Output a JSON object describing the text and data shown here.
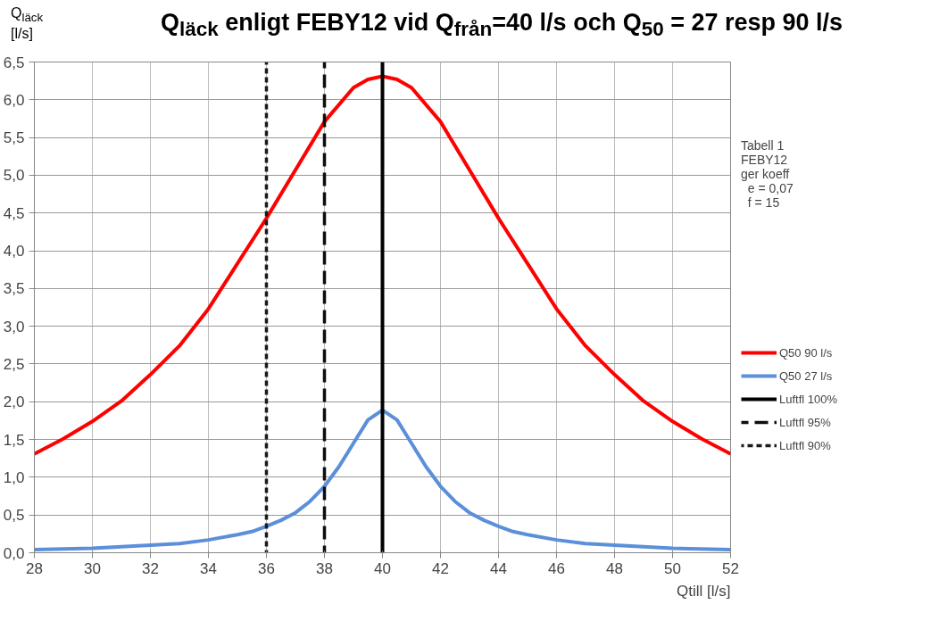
{
  "chart_data": {
    "type": "line",
    "title": "Q$_{läck}$ enligt FEBY12 vid Q$_{från}$=40 l/s och Q$_{50}$ = 27 resp 90 l/s",
    "ylabel": "Q$_{läck}$ [l/s]",
    "xlabel": "Qtill [l/s]",
    "x": [
      28,
      29,
      30,
      31,
      32,
      33,
      34,
      35,
      36,
      37,
      38,
      39,
      39.5,
      40,
      40.5,
      41,
      42,
      43,
      44,
      45,
      46,
      47,
      48,
      49,
      50,
      51,
      52
    ],
    "series": [
      {
        "name": "Q50 90 l/s",
        "color": "#ff0000",
        "values": [
          1.31,
          1.51,
          1.74,
          2.01,
          2.36,
          2.74,
          3.23,
          3.83,
          4.43,
          5.07,
          5.71,
          6.16,
          6.27,
          6.31,
          6.27,
          6.16,
          5.71,
          5.07,
          4.43,
          3.83,
          3.23,
          2.74,
          2.36,
          2.01,
          1.74,
          1.51,
          1.31
        ]
      },
      {
        "name": "Q50 27 l/s",
        "color": "#5b8fd9",
        "x": [
          28,
          30,
          32,
          33,
          34,
          35,
          35.5,
          36,
          36.5,
          37,
          37.5,
          38,
          38.5,
          39,
          39.5,
          40,
          40.5,
          41,
          41.5,
          42,
          42.5,
          43,
          43.5,
          44,
          44.5,
          45,
          46,
          47,
          48,
          50,
          52
        ],
        "values": [
          0.04,
          0.06,
          0.1,
          0.12,
          0.17,
          0.24,
          0.28,
          0.35,
          0.43,
          0.53,
          0.68,
          0.88,
          1.14,
          1.45,
          1.76,
          1.89,
          1.76,
          1.45,
          1.14,
          0.88,
          0.68,
          0.53,
          0.43,
          0.35,
          0.28,
          0.24,
          0.17,
          0.12,
          0.1,
          0.06,
          0.04
        ]
      },
      {
        "name": "Luftfl 100%",
        "color": "#000000",
        "line_style": "solid",
        "x": [
          40,
          40
        ],
        "values": [
          0,
          6.5
        ]
      },
      {
        "name": "Luftfl 95%",
        "color": "#0d0d0d",
        "line_style": "dashed",
        "x": [
          38,
          38
        ],
        "values": [
          0,
          6.5
        ]
      },
      {
        "name": "Luftfl 90%",
        "color": "#1a1a1a",
        "line_style": "dotted",
        "x": [
          36,
          36
        ],
        "values": [
          0,
          6.5
        ]
      }
    ],
    "annotations": [
      "Tabell 1\nFEBY12\nger koeff\n  e = 0,07\n  f = 15"
    ],
    "xlim": [
      28,
      52
    ],
    "xticks": [
      28,
      30,
      32,
      34,
      36,
      38,
      40,
      42,
      44,
      46,
      48,
      50,
      52
    ],
    "ylim": [
      0,
      6.5
    ],
    "yticks": [
      {
        "value": 0,
        "label": "0,0"
      },
      {
        "value": 0.5,
        "label": "0,5"
      },
      {
        "value": 1,
        "label": "1,0"
      },
      {
        "value": 1.5,
        "label": "1,5"
      },
      {
        "value": 2,
        "label": "2,0"
      },
      {
        "value": 2.5,
        "label": "2,5"
      },
      {
        "value": 3,
        "label": "3,0"
      },
      {
        "value": 3.5,
        "label": "3,5"
      },
      {
        "value": 4,
        "label": "4,0"
      },
      {
        "value": 4.5,
        "label": "4,5"
      },
      {
        "value": 5,
        "label": "5,0"
      },
      {
        "value": 5.5,
        "label": "5,5"
      },
      {
        "value": 6,
        "label": "6,0"
      },
      {
        "value": 6.5,
        "label": "6,5"
      }
    ],
    "grid": true,
    "legend": "right",
    "line_style": "solid",
    "marker": "none"
  }
}
